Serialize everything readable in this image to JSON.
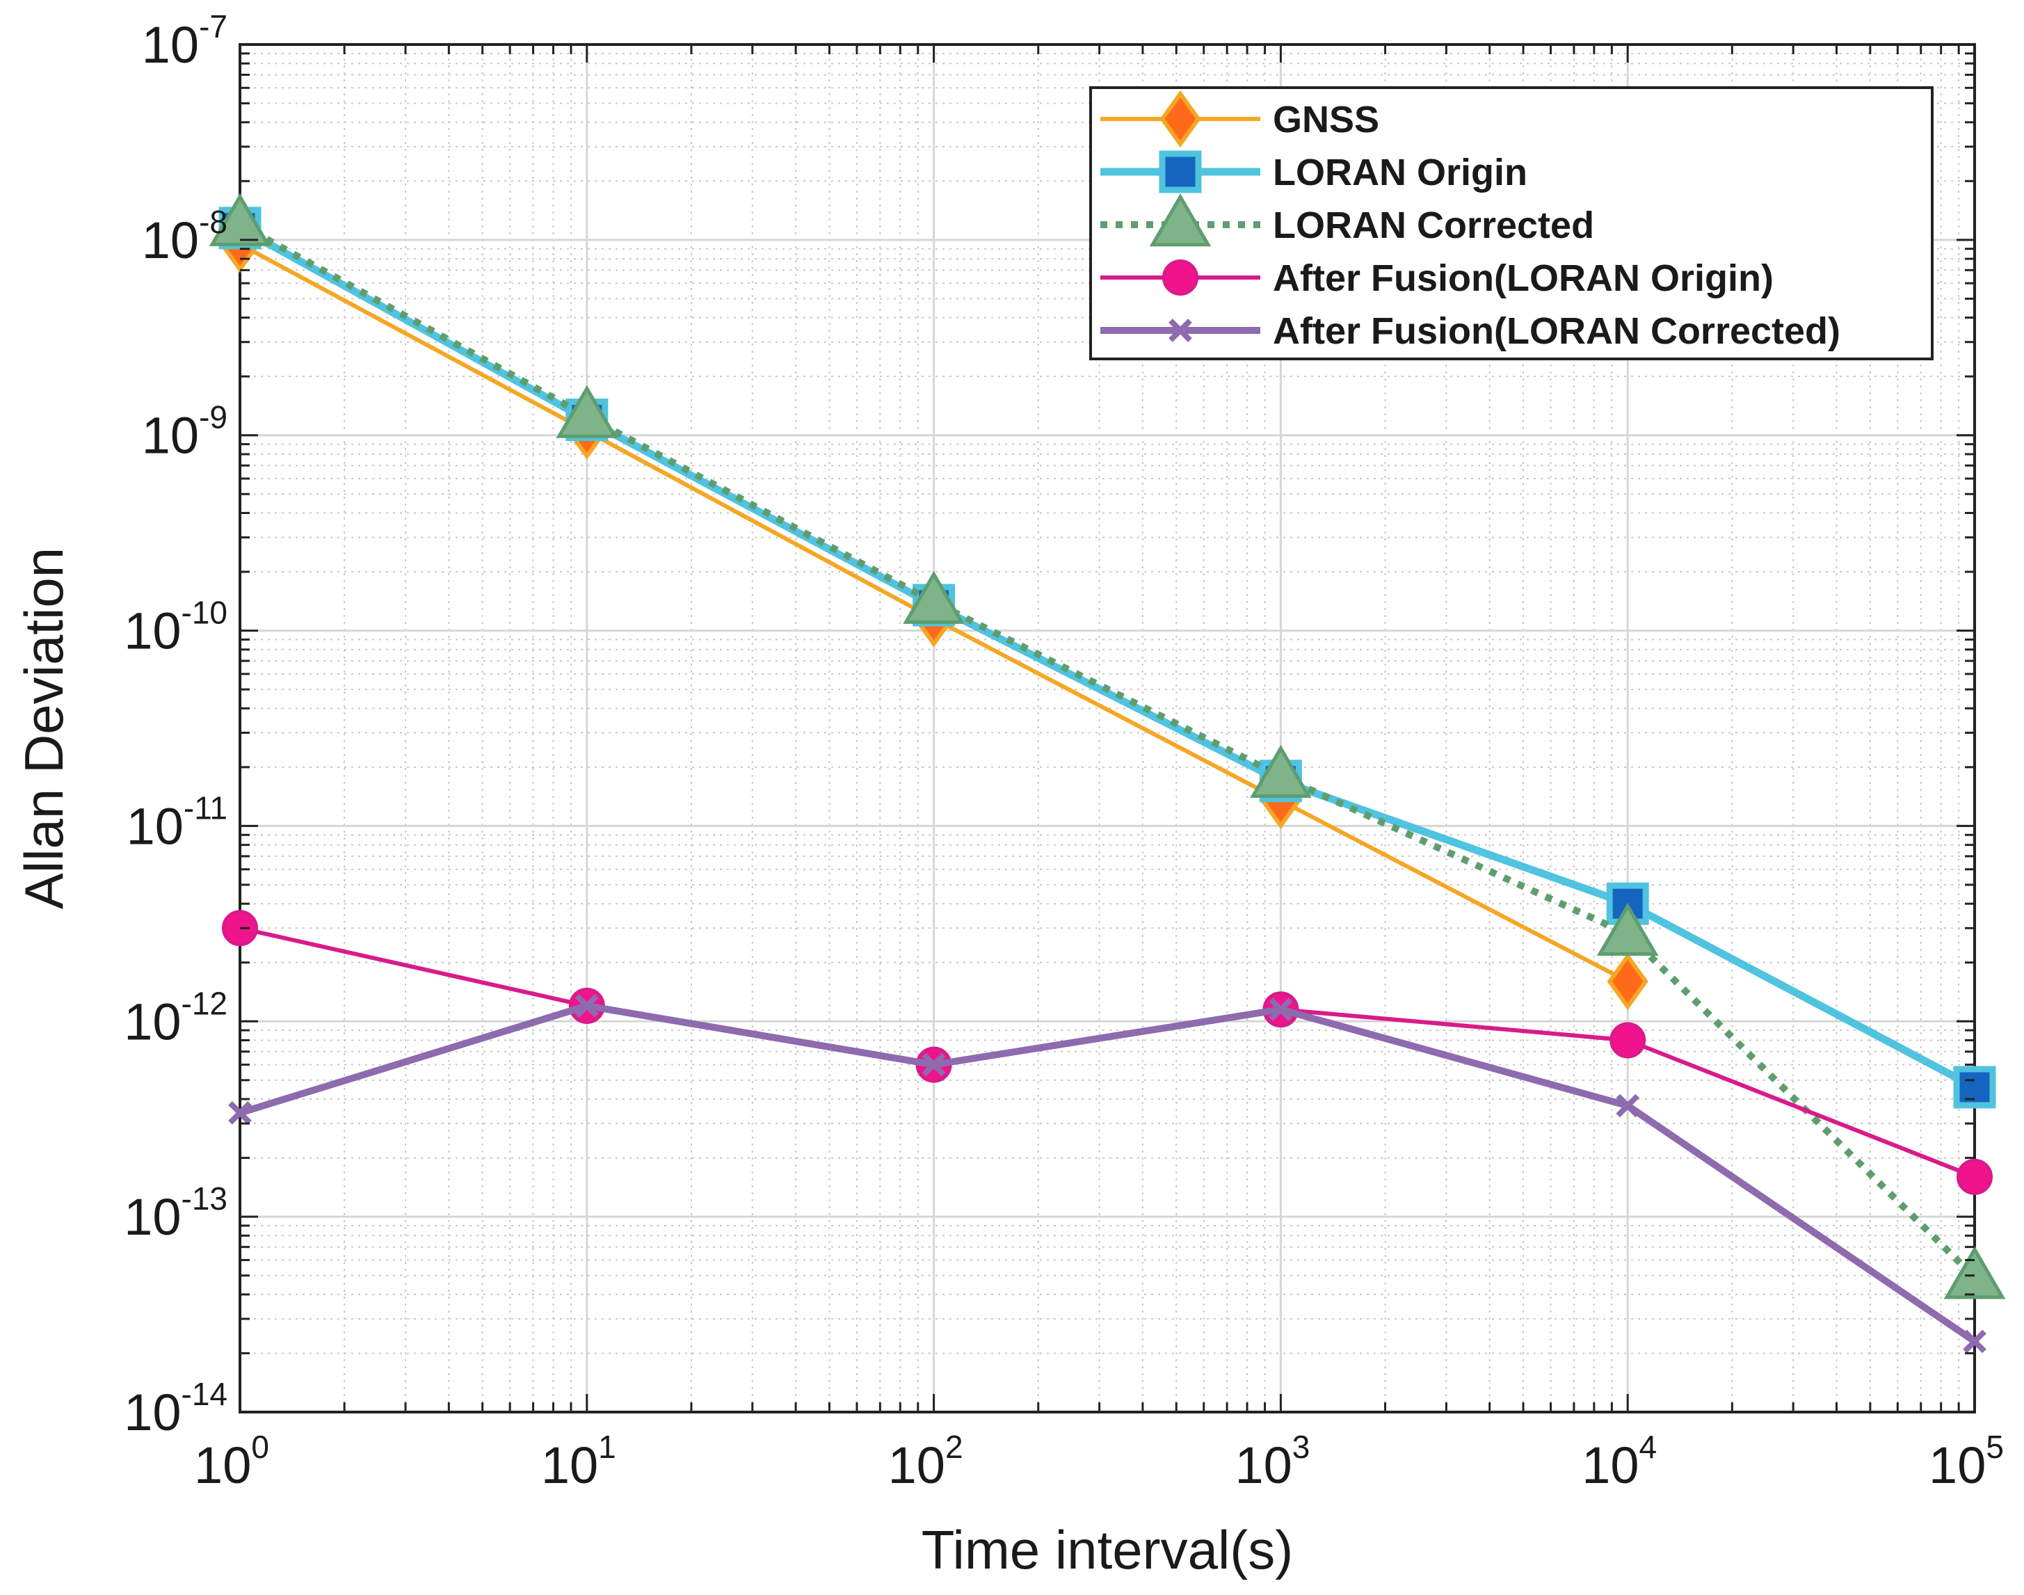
{
  "chart_data": {
    "type": "line",
    "title": "",
    "xlabel": "Time interval(s)",
    "ylabel": "Allan Deviation",
    "xscale": "log",
    "yscale": "log",
    "xlim": [
      1,
      100000
    ],
    "ylim": [
      1e-14,
      1e-07
    ],
    "grid": true,
    "minor_grid": true,
    "legend_position": "top-right",
    "x_ticks": [
      {
        "base": "10",
        "exp": "0",
        "value": 1
      },
      {
        "base": "10",
        "exp": "1",
        "value": 10
      },
      {
        "base": "10",
        "exp": "2",
        "value": 100
      },
      {
        "base": "10",
        "exp": "3",
        "value": 1000
      },
      {
        "base": "10",
        "exp": "4",
        "value": 10000
      },
      {
        "base": "10",
        "exp": "5",
        "value": 100000
      }
    ],
    "y_ticks": [
      {
        "base": "10",
        "exp": "-7",
        "value": 1e-07
      },
      {
        "base": "10",
        "exp": "-8",
        "value": 1e-08
      },
      {
        "base": "10",
        "exp": "-9",
        "value": 1e-09
      },
      {
        "base": "10",
        "exp": "-10",
        "value": 1e-10
      },
      {
        "base": "10",
        "exp": "-11",
        "value": 1e-11
      },
      {
        "base": "10",
        "exp": "-12",
        "value": 1e-12
      },
      {
        "base": "10",
        "exp": "-13",
        "value": 1e-13
      },
      {
        "base": "10",
        "exp": "-14",
        "value": 1e-14
      }
    ],
    "series": [
      {
        "name": "GNSS",
        "color": "#F5A623",
        "marker_fill": "#FF6A1A",
        "marker": "diamond",
        "dash": "solid",
        "x": [
          1,
          10,
          100,
          1000,
          10000
        ],
        "values": [
          9.5e-09,
          1.05e-09,
          1.15e-10,
          1.35e-11,
          1.6e-12
        ]
      },
      {
        "name": "LORAN Origin",
        "color": "#4FC3DF",
        "marker_fill": "#1565C0",
        "marker": "square",
        "dash": "solid",
        "x": [
          1,
          10,
          100,
          1000,
          10000,
          100000
        ],
        "values": [
          1.15e-08,
          1.2e-09,
          1.35e-10,
          1.7e-11,
          4e-12,
          4.6e-13
        ]
      },
      {
        "name": "LORAN Corrected",
        "color": "#5E9E6E",
        "marker_fill": "#7FB38A",
        "marker": "triangle",
        "dash": "dotted",
        "x": [
          1,
          10,
          100,
          1000,
          10000,
          100000
        ],
        "values": [
          1.2e-08,
          1.25e-09,
          1.4e-10,
          1.8e-11,
          2.8e-12,
          4.9e-14
        ]
      },
      {
        "name": "After Fusion(LORAN Origin)",
        "color": "#D81B8A",
        "marker_fill": "#F0148C",
        "marker": "circle",
        "dash": "solid",
        "x": [
          1,
          10,
          100,
          1000,
          10000,
          100000
        ],
        "values": [
          3e-12,
          1.2e-12,
          6e-13,
          1.15e-12,
          8e-13,
          1.6e-13
        ]
      },
      {
        "name": "After Fusion(LORAN Corrected)",
        "color": "#8E6AAE",
        "marker_fill": "#8E6AAE",
        "marker": "x",
        "dash": "solid",
        "x": [
          1,
          10,
          100,
          1000,
          10000,
          100000
        ],
        "values": [
          3.4e-13,
          1.2e-12,
          6e-13,
          1.15e-12,
          3.7e-13,
          2.3e-14
        ]
      }
    ]
  }
}
